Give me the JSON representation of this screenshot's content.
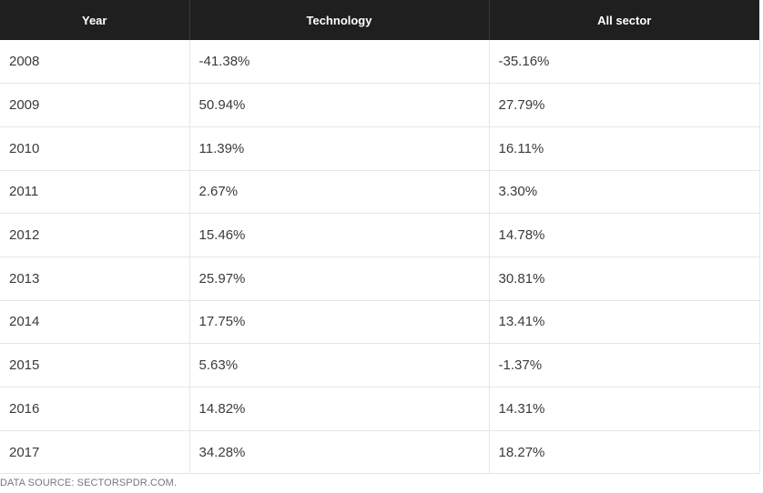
{
  "table": {
    "headers": [
      "Year",
      "Technology",
      "All sector"
    ],
    "rows": [
      [
        "2008",
        "-41.38%",
        "-35.16%"
      ],
      [
        "2009",
        "50.94%",
        "27.79%"
      ],
      [
        "2010",
        "11.39%",
        "16.11%"
      ],
      [
        "2011",
        "2.67%",
        "3.30%"
      ],
      [
        "2012",
        "15.46%",
        "14.78%"
      ],
      [
        "2013",
        "25.97%",
        "30.81%"
      ],
      [
        "2014",
        "17.75%",
        "13.41%"
      ],
      [
        "2015",
        "5.63%",
        "-1.37%"
      ],
      [
        "2016",
        "14.82%",
        "14.31%"
      ],
      [
        "2017",
        "34.28%",
        "18.27%"
      ]
    ]
  },
  "source": "DATA SOURCE: SECTORSPDR.COM."
}
